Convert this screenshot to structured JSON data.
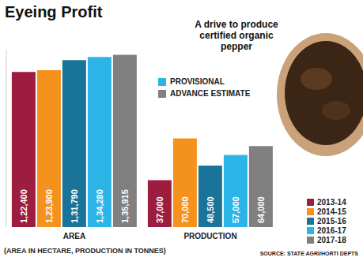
{
  "chart_data": {
    "type": "bar",
    "title": "Eyeing Profit",
    "annotation": "A drive to produce certified organic pepper",
    "footnote": "(AREA IN HECTARE, PRODUCTION IN TONNES)",
    "source": "SOURCE: STATE AGRI/HORTI DEPTS",
    "status_legend": [
      {
        "name": "PROVISIONAL",
        "color": "#2bb5e6"
      },
      {
        "name": "ADVANCE ESTIMATE",
        "color": "#808080"
      }
    ],
    "categories": [
      "AREA",
      "PRODUCTION"
    ],
    "series": [
      {
        "name": "2013-14",
        "color": "#9c1d3f",
        "values": [
          122400,
          37000
        ],
        "value_labels": [
          "1,22,400",
          "37,000"
        ]
      },
      {
        "name": "2014-15",
        "color": "#f5921e",
        "values": [
          123900,
          70000
        ],
        "value_labels": [
          "1,23,900",
          "70,000"
        ]
      },
      {
        "name": "2015-16",
        "color": "#1a7399",
        "values": [
          131790,
          48500
        ],
        "value_labels": [
          "1,31,790",
          "48,500"
        ]
      },
      {
        "name": "2016-17",
        "color": "#2bb5e6",
        "values": [
          134280,
          57000
        ],
        "value_labels": [
          "1,34,280",
          "57,000"
        ]
      },
      {
        "name": "2017-18",
        "color": "#808080",
        "values": [
          135915,
          64000
        ],
        "value_labels": [
          "1,35,915",
          "64,000"
        ]
      }
    ],
    "ylim": [
      0,
      140000
    ],
    "yticks": [],
    "tick_labels": "x",
    "data_labels": true,
    "legend": "bottom right",
    "grid": false
  }
}
